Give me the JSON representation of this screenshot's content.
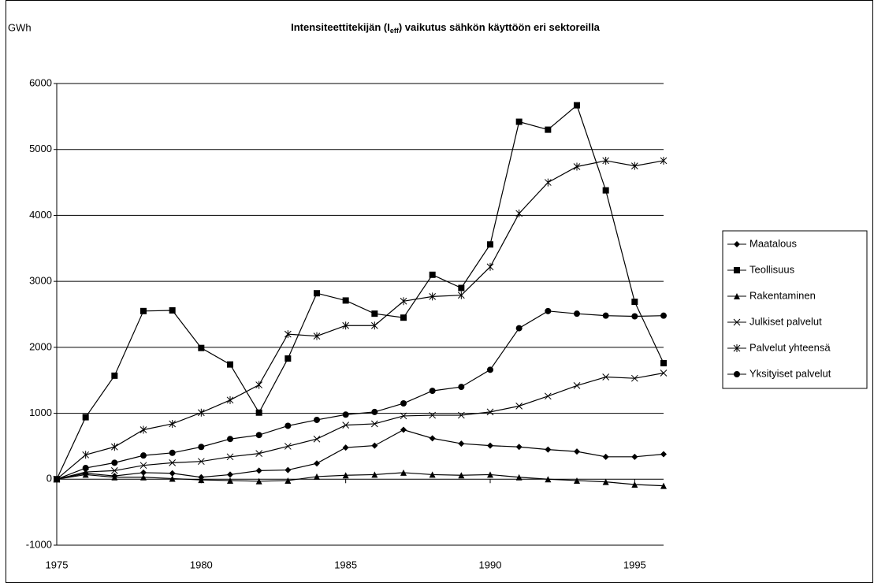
{
  "chart_data": {
    "type": "line",
    "title": [
      "Intensiteettitekijän (I",
      "eff",
      ") vaikutus sähkön käyttöön eri sektoreilla"
    ],
    "y_label": "GWh",
    "x": [
      1975,
      1976,
      1977,
      1978,
      1979,
      1980,
      1981,
      1982,
      1983,
      1984,
      1985,
      1986,
      1987,
      1988,
      1989,
      1990,
      1991,
      1992,
      1993,
      1994,
      1995,
      1996
    ],
    "xlim": [
      1975,
      1996
    ],
    "xticks": [
      1975,
      1980,
      1985,
      1990,
      1995
    ],
    "ylim": [
      -1000,
      6000
    ],
    "yticks": [
      -1000,
      0,
      1000,
      2000,
      3000,
      4000,
      5000,
      6000
    ],
    "grid": true,
    "legend": "right",
    "series": [
      {
        "name": "Maatalous",
        "color": "#000000",
        "marker": "diamond",
        "values": [
          0,
          90,
          50,
          100,
          90,
          30,
          70,
          130,
          140,
          240,
          480,
          510,
          750,
          620,
          540,
          510,
          490,
          450,
          420,
          340,
          340,
          380
        ]
      },
      {
        "name": "Teollisuus",
        "color": "#000000",
        "marker": "square",
        "values": [
          0,
          940,
          1570,
          2550,
          2560,
          1990,
          1740,
          1010,
          1830,
          2820,
          2710,
          2510,
          2450,
          3100,
          2900,
          3560,
          5420,
          5300,
          5670,
          4380,
          2690,
          1760
        ]
      },
      {
        "name": "Rakentaminen",
        "color": "#000000",
        "marker": "triangle",
        "values": [
          0,
          70,
          30,
          30,
          10,
          -10,
          -20,
          -30,
          -20,
          40,
          60,
          70,
          100,
          70,
          60,
          70,
          30,
          0,
          -20,
          -40,
          -80,
          -100
        ]
      },
      {
        "name": "Julkiset palvelut",
        "color": "#000000",
        "marker": "x",
        "values": [
          0,
          110,
          130,
          210,
          250,
          270,
          340,
          390,
          500,
          610,
          820,
          840,
          960,
          970,
          970,
          1020,
          1110,
          1260,
          1420,
          1550,
          1530,
          1610
        ]
      },
      {
        "name": "Palvelut yhteensä",
        "color": "#000000",
        "marker": "asterisk",
        "values": [
          0,
          370,
          490,
          750,
          840,
          1010,
          1200,
          1430,
          2200,
          2170,
          2330,
          2330,
          2700,
          2770,
          2790,
          3220,
          4030,
          4500,
          4740,
          4830,
          4750,
          4830
        ]
      },
      {
        "name": "Yksityiset palvelut",
        "color": "#000000",
        "marker": "circle",
        "values": [
          0,
          170,
          250,
          360,
          400,
          490,
          610,
          670,
          810,
          900,
          980,
          1020,
          1150,
          1340,
          1400,
          1660,
          2290,
          2550,
          2510,
          2480,
          2470,
          2480
        ]
      }
    ]
  }
}
